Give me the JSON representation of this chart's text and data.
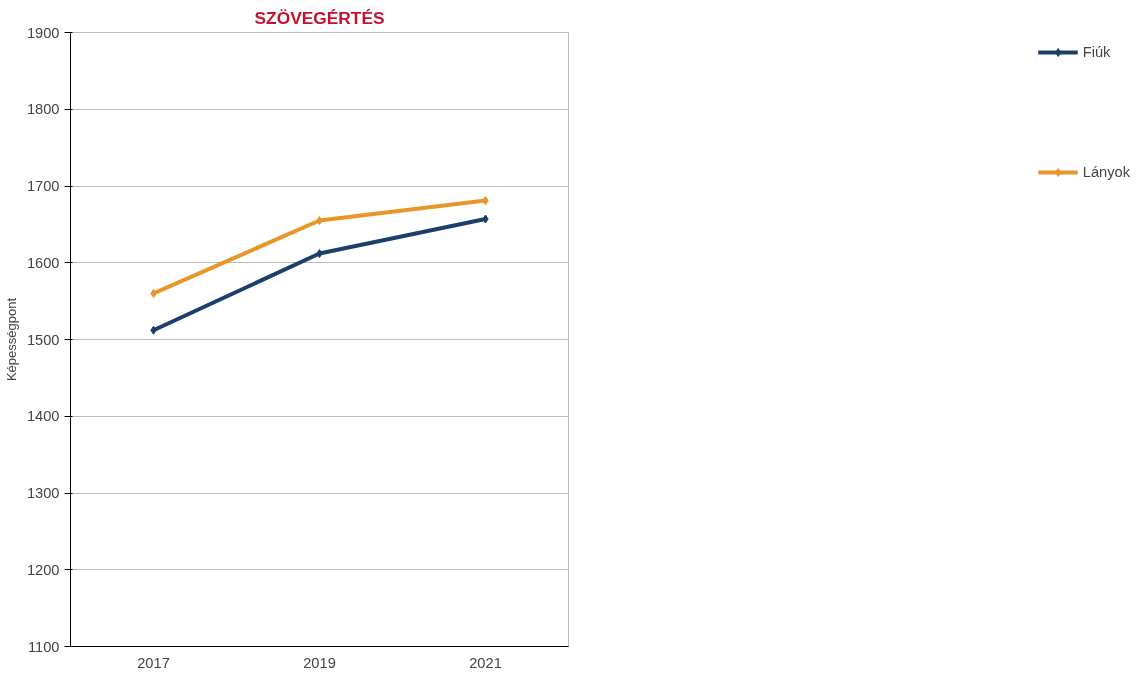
{
  "chart_data": {
    "type": "line",
    "title": "SZÖVEGÉRTÉS",
    "ylabel": "Képességpont",
    "categories": [
      "2017",
      "2019",
      "2021"
    ],
    "series": [
      {
        "name": "Fiúk",
        "color": "#1b3f6b",
        "values": [
          1512,
          1612,
          1657
        ]
      },
      {
        "name": "Lányok",
        "color": "#e8962a",
        "values": [
          1560,
          1655,
          1681
        ]
      }
    ],
    "ylim": [
      1100,
      1900
    ],
    "yticks": [
      1100,
      1200,
      1300,
      1400,
      1500,
      1600,
      1700,
      1800,
      1900
    ],
    "grid": "y",
    "legend": "right",
    "marker": "diamond",
    "line_style": "solid"
  }
}
